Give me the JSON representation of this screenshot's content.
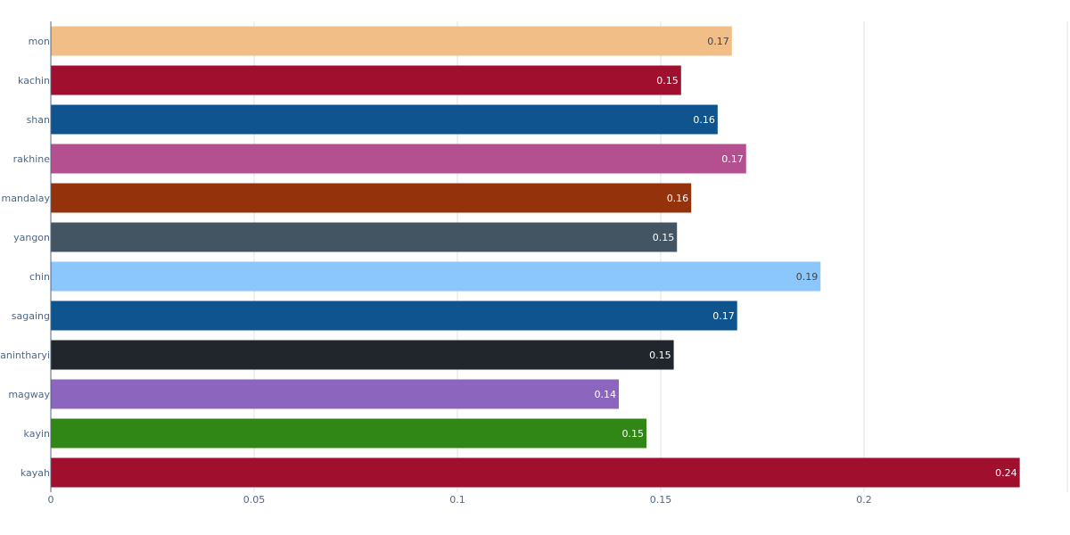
{
  "chart_data": {
    "type": "bar",
    "orientation": "horizontal",
    "title": "",
    "xlabel": "",
    "ylabel": "",
    "xlim": [
      0,
      0.25
    ],
    "xticks": [
      0,
      0.05,
      0.1,
      0.15,
      0.2
    ],
    "xtick_labels": [
      "0",
      "0.05",
      "0.1",
      "0.15",
      "0.2"
    ],
    "grid": true,
    "legend": "none",
    "categories": [
      "mon",
      "kachin",
      "shan",
      "rakhine",
      "mandalay",
      "yangon",
      "chin",
      "sagaing",
      "tanintharyi",
      "magway",
      "kayin",
      "kayah"
    ],
    "values": [
      0.1675,
      0.155,
      0.164,
      0.171,
      0.1575,
      0.154,
      0.1893,
      0.1688,
      0.1532,
      0.1397,
      0.1465,
      0.2383
    ],
    "value_labels": [
      "0.17",
      "0.15",
      "0.16",
      "0.17",
      "0.16",
      "0.15",
      "0.19",
      "0.17",
      "0.15",
      "0.14",
      "0.15",
      "0.24"
    ],
    "colors": [
      "#F2BE88",
      "#A00F2D",
      "#0F548E",
      "#B44F90",
      "#94330B",
      "#435563",
      "#8BC7FC",
      "#0F548E",
      "#20262B",
      "#8B65BE",
      "#308715",
      "#A00F2D"
    ],
    "label_colors": [
      "#444444",
      "#ffffff",
      "#ffffff",
      "#ffffff",
      "#ffffff",
      "#ffffff",
      "#444444",
      "#ffffff",
      "#ffffff",
      "#ffffff",
      "#ffffff",
      "#ffffff"
    ]
  }
}
